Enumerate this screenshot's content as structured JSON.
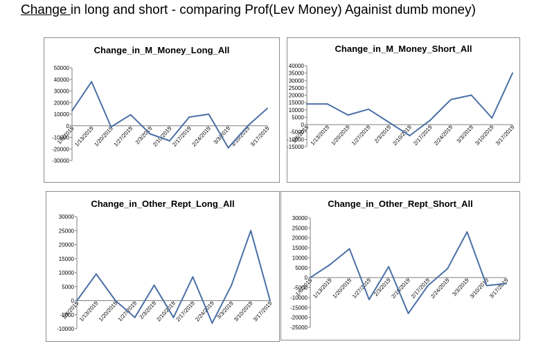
{
  "heading": {
    "underlined": "Change ",
    "rest": "in long and short - comparing Prof(Lev Money) Againist dumb money)"
  },
  "colors": {
    "line": "#4a6fa5",
    "axis": "#7f7f7f"
  },
  "chart_data": [
    {
      "type": "line",
      "title": "Change_in_M_Money_Long_All",
      "categories": [
        "1/6/2015",
        "1/13/2015",
        "1/20/2015",
        "1/27/2015",
        "2/3/2015",
        "2/10/2015",
        "2/17/2015",
        "2/24/2015",
        "3/3/2015",
        "3/10/2015",
        "3/17/2015"
      ],
      "values": [
        13000,
        38000,
        -1000,
        9500,
        -7000,
        -13000,
        7500,
        10000,
        -19000,
        0,
        15000
      ],
      "ylim": [
        -30000,
        50000
      ],
      "yticks": [
        50000,
        40000,
        30000,
        20000,
        10000,
        0,
        -10000,
        -20000,
        -30000
      ]
    },
    {
      "type": "line",
      "title": "Change_in_M_Money_Short_All",
      "categories": [
        "1/6/2015",
        "1/13/2015",
        "1/20/2015",
        "1/27/2015",
        "2/3/2015",
        "2/10/2015",
        "2/17/2015",
        "2/24/2015",
        "3/3/2015",
        "3/10/2015",
        "3/17/2015"
      ],
      "values": [
        14000,
        14000,
        6500,
        10500,
        1500,
        -7500,
        3000,
        17000,
        20000,
        4500,
        35000
      ],
      "ylim": [
        -15000,
        40000
      ],
      "yticks": [
        40000,
        35000,
        30000,
        25000,
        20000,
        15000,
        10000,
        5000,
        0,
        -5000,
        -10000,
        -15000
      ]
    },
    {
      "type": "line",
      "title": "Change_in_Other_Rept_Long_All",
      "categories": [
        "1/6/2015",
        "1/13/2015",
        "1/20/2015",
        "1/27/2015",
        "2/3/2015",
        "2/10/2015",
        "2/17/2015",
        "2/24/2015",
        "3/3/2015",
        "3/10/2015",
        "3/17/2015"
      ],
      "values": [
        0,
        9500,
        0,
        -6000,
        5500,
        -6000,
        8500,
        -8000,
        5500,
        25000,
        0
      ],
      "ylim": [
        -10000,
        30000
      ],
      "yticks": [
        30000,
        25000,
        20000,
        15000,
        10000,
        5000,
        0,
        -5000,
        -10000
      ]
    },
    {
      "type": "line",
      "title": "Change_in_Other_Rept_Short_All",
      "categories": [
        "1/6/2015",
        "1/13/2015",
        "1/20/2015",
        "1/27/2015",
        "2/3/2015",
        "2/10/2015",
        "2/17/2015",
        "2/24/2015",
        "3/3/2015",
        "3/10/2015",
        "3/17/2015"
      ],
      "values": [
        0,
        6500,
        14500,
        -11000,
        5500,
        -18000,
        -4000,
        4500,
        23000,
        -4000,
        -3000
      ],
      "ylim": [
        -25000,
        30000
      ],
      "yticks": [
        30000,
        25000,
        20000,
        15000,
        10000,
        5000,
        0,
        -5000,
        -10000,
        -15000,
        -20000,
        -25000
      ]
    }
  ]
}
